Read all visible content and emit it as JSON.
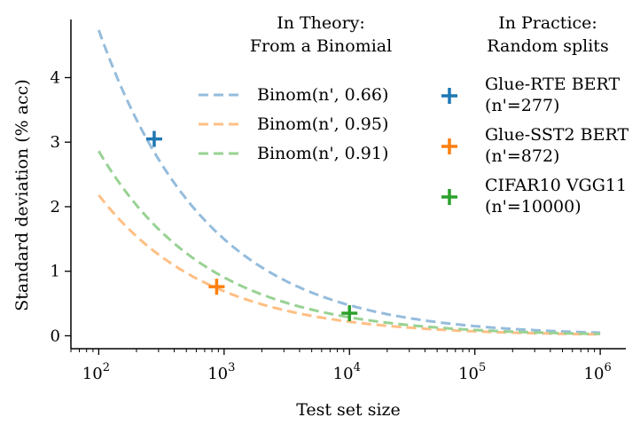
{
  "chart_data": {
    "type": "line",
    "xlabel": "Test set size",
    "ylabel": "Standard deviation (% acc)",
    "xscale": "log",
    "xlim": [
      60,
      1600000
    ],
    "ylim": [
      -0.2,
      4.9
    ],
    "x_ticks": [
      {
        "value": 100,
        "base": "10",
        "exp": "2"
      },
      {
        "value": 1000,
        "base": "10",
        "exp": "3"
      },
      {
        "value": 10000,
        "base": "10",
        "exp": "4"
      },
      {
        "value": 100000,
        "base": "10",
        "exp": "5"
      },
      {
        "value": 1000000,
        "base": "10",
        "exp": "6"
      }
    ],
    "y_ticks": [
      {
        "value": 0,
        "label": "0"
      },
      {
        "value": 1,
        "label": "1"
      },
      {
        "value": 2,
        "label": "2"
      },
      {
        "value": 3,
        "label": "3"
      },
      {
        "value": 4,
        "label": "4"
      }
    ],
    "grid": false,
    "theory_legend": {
      "title_lines": [
        "In Theory:",
        "From a Binomial"
      ],
      "placement": "top-center"
    },
    "practice_legend": {
      "title_lines": [
        "In Practice:",
        "Random splits"
      ],
      "placement": "top-right"
    },
    "theory_series": [
      {
        "name": "Binom(n', 0.66)",
        "p": 0.66,
        "color": "#95bcdc",
        "x_range": [
          100,
          1000000
        ]
      },
      {
        "name": "Binom(n', 0.95)",
        "p": 0.95,
        "color": "#ffbf85",
        "x_range": [
          100,
          1000000
        ]
      },
      {
        "name": "Binom(n', 0.91)",
        "p": 0.91,
        "color": "#98d293",
        "x_range": [
          100,
          1000000
        ]
      }
    ],
    "practice_points": [
      {
        "label_lines": [
          "Glue-RTE BERT",
          "(n'=277)"
        ],
        "x": 277,
        "y": 3.05,
        "color": "#1f77b4"
      },
      {
        "label_lines": [
          "Glue-SST2 BERT",
          "(n'=872)"
        ],
        "x": 872,
        "y": 0.76,
        "color": "#ff7f0e"
      },
      {
        "label_lines": [
          "CIFAR10 VGG11",
          "(n'=10000)"
        ],
        "x": 10000,
        "y": 0.35,
        "color": "#2ca02c"
      }
    ]
  }
}
